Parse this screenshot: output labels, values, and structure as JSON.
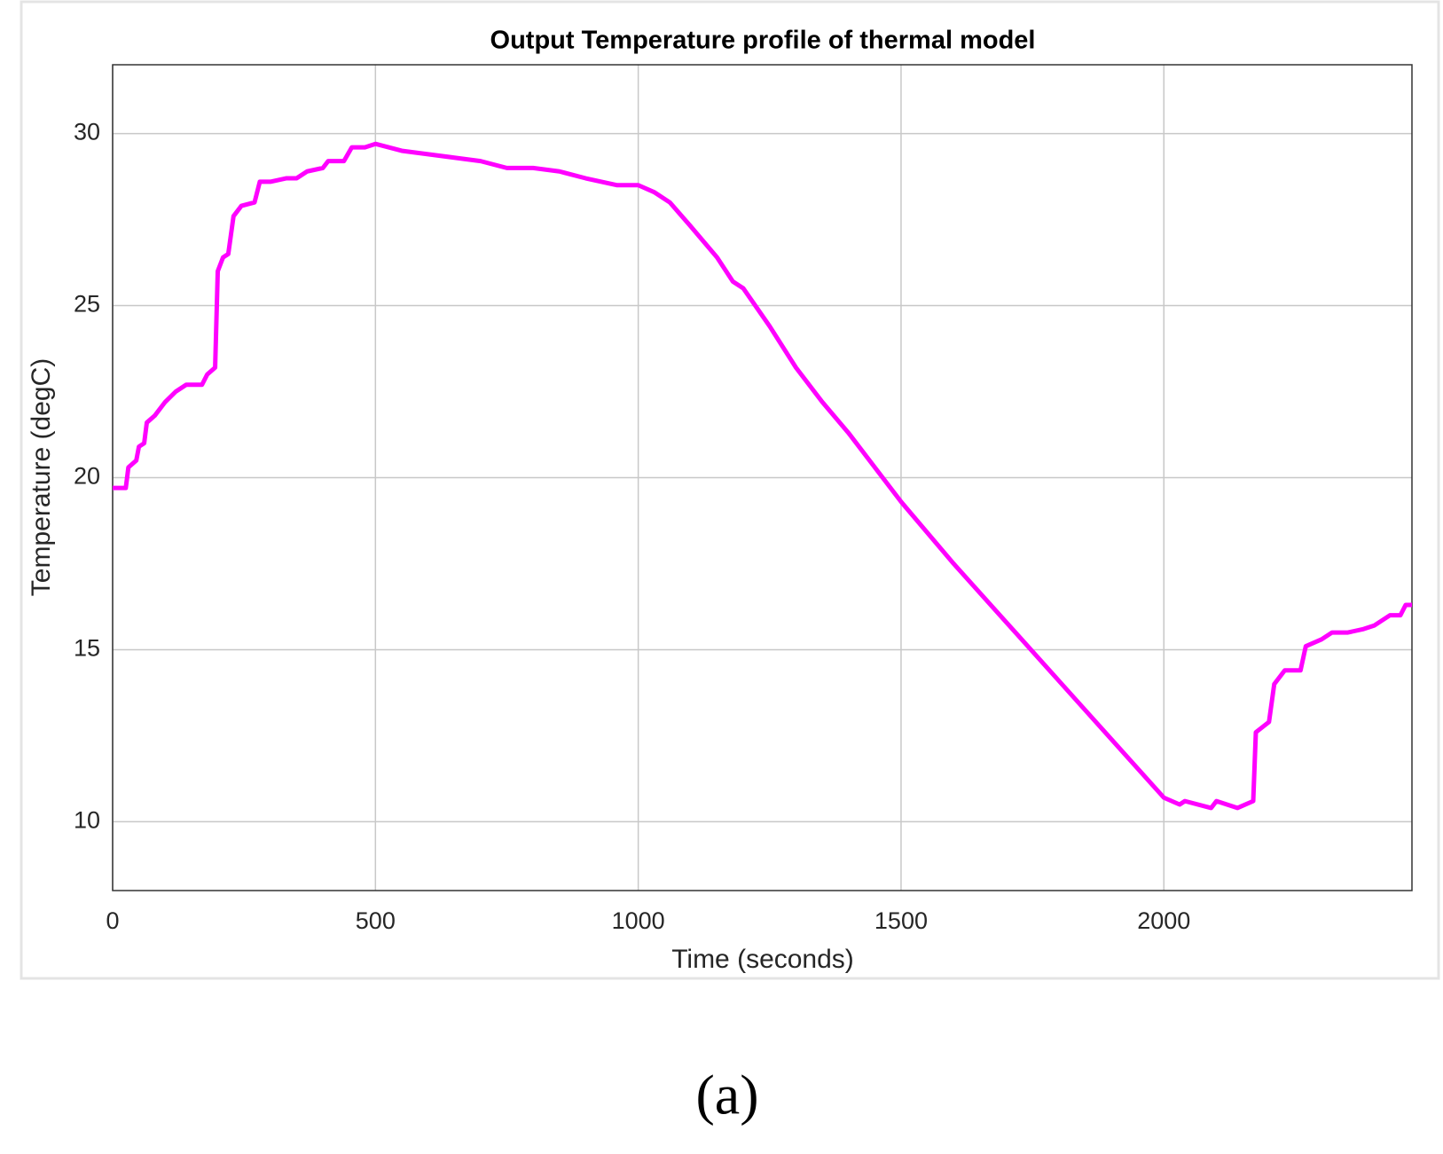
{
  "chart_data": {
    "type": "line",
    "title": "Output Temperature profile of thermal model",
    "x_label": "Time (seconds)",
    "y_label": "Temperature (degC)",
    "x": [
      0,
      25,
      30,
      45,
      50,
      60,
      65,
      80,
      100,
      120,
      140,
      170,
      180,
      195,
      200,
      210,
      220,
      230,
      245,
      270,
      280,
      300,
      330,
      350,
      370,
      400,
      410,
      440,
      455,
      480,
      500,
      550,
      600,
      650,
      700,
      750,
      800,
      850,
      900,
      960,
      1000,
      1030,
      1060,
      1100,
      1150,
      1180,
      1200,
      1250,
      1300,
      1350,
      1400,
      1450,
      1500,
      1600,
      1700,
      1800,
      1900,
      2000,
      2030,
      2040,
      2090,
      2100,
      2140,
      2170,
      2175,
      2200,
      2210,
      2230,
      2260,
      2270,
      2300,
      2320,
      2350,
      2380,
      2400,
      2430,
      2450,
      2460,
      2472
    ],
    "series": [
      {
        "name": "Temperature",
        "color": "#ff00ff",
        "values": [
          19.7,
          19.7,
          20.3,
          20.5,
          20.9,
          21.0,
          21.6,
          21.8,
          22.2,
          22.5,
          22.7,
          22.7,
          23.0,
          23.2,
          26.0,
          26.4,
          26.5,
          27.6,
          27.9,
          28.0,
          28.6,
          28.6,
          28.7,
          28.7,
          28.9,
          29.0,
          29.2,
          29.2,
          29.6,
          29.6,
          29.7,
          29.5,
          29.4,
          29.3,
          29.2,
          29.0,
          29.0,
          28.9,
          28.7,
          28.5,
          28.5,
          28.3,
          28.0,
          27.3,
          26.4,
          25.7,
          25.5,
          24.4,
          23.2,
          22.2,
          21.3,
          20.3,
          19.3,
          17.5,
          15.8,
          14.1,
          12.4,
          10.7,
          10.5,
          10.6,
          10.4,
          10.6,
          10.4,
          10.6,
          12.6,
          12.9,
          14.0,
          14.4,
          14.4,
          15.1,
          15.3,
          15.5,
          15.5,
          15.6,
          15.7,
          16.0,
          16.0,
          16.3,
          16.3
        ]
      }
    ],
    "xlim": [
      0,
      2472
    ],
    "ylim": [
      8,
      32
    ],
    "xticks": [
      0,
      500,
      1000,
      1500,
      2000
    ],
    "yticks": [
      10,
      15,
      20,
      25,
      30
    ],
    "grid": true,
    "caption": "(a)"
  }
}
